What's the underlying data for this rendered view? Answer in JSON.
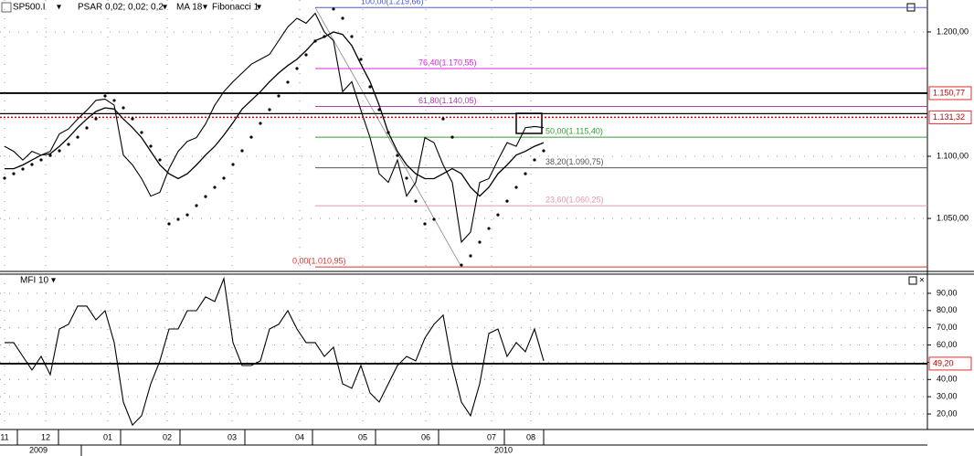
{
  "chart_data": [
    {
      "type": "line",
      "x": [
        0,
        1,
        2,
        3,
        4,
        5,
        6,
        7,
        8,
        9,
        10,
        11,
        12,
        13,
        14,
        15,
        16,
        17,
        18,
        19,
        20,
        21,
        22,
        23,
        24,
        25,
        26,
        27,
        28,
        29,
        30,
        31,
        32,
        33,
        34,
        35,
        36,
        37,
        38,
        39,
        40,
        41,
        42,
        43,
        44,
        45,
        46,
        47,
        48,
        49,
        50,
        51,
        52,
        53,
        54,
        55,
        56,
        57,
        58,
        59
      ],
      "xlim": [
        -0.5,
        101
      ],
      "ylim": [
        1007.4,
        1225.7
      ],
      "yticks": [
        {
          "value": 1200,
          "label": "1.200,00"
        },
        {
          "value": 1100,
          "label": "1.100,00"
        },
        {
          "value": 1050,
          "label": "1.050,00"
        }
      ],
      "grid": true,
      "series": [
        {
          "name": "SP500.I",
          "color": "#000000",
          "style": "line",
          "values": [
            1108,
            1104,
            1097,
            1104,
            1101,
            1104,
            1118,
            1122,
            1130,
            1137,
            1145,
            1146,
            1141,
            1101,
            1093,
            1082,
            1068,
            1071,
            1090,
            1104,
            1112,
            1115,
            1126,
            1141,
            1152,
            1160,
            1167,
            1174,
            1178,
            1182,
            1193,
            1204,
            1211,
            1207,
            1215,
            1200,
            1193,
            1152,
            1160,
            1137,
            1115,
            1086,
            1079,
            1097,
            1068,
            1079,
            1115,
            1111,
            1093,
            1079,
            1031,
            1039,
            1079,
            1082,
            1097,
            1111,
            1108,
            1123,
            1124,
            1123
          ]
        },
        {
          "name": "MA 18",
          "color": "#000000",
          "style": "line",
          "values": [
            1090,
            1090,
            1093,
            1097,
            1101,
            1102,
            1108,
            1115,
            1123,
            1130,
            1136,
            1139,
            1138,
            1130,
            1123,
            1115,
            1104,
            1093,
            1086,
            1082,
            1086,
            1093,
            1101,
            1108,
            1117,
            1127,
            1138,
            1145,
            1152,
            1160,
            1167,
            1173,
            1178,
            1185,
            1193,
            1196,
            1200,
            1198,
            1189,
            1174,
            1160,
            1141,
            1119,
            1104,
            1093,
            1086,
            1082,
            1082,
            1086,
            1090,
            1086,
            1075,
            1068,
            1075,
            1086,
            1093,
            1101,
            1104,
            1108,
            1111
          ]
        },
        {
          "name": "PSAR 0,02; 0,02; 0,2",
          "color": "#000000",
          "style": "dots",
          "values": [
            1082.4,
            1086.0,
            1089.7,
            1093.4,
            1097.1,
            1100.7,
            1104.4,
            1109.6,
            1115.4,
            1122.8,
            1130.1,
            1148.5,
            1144.9,
            1139.0,
            1130.1,
            1119.1,
            1108.1,
            1097.1,
            1045.6,
            1049.3,
            1052.9,
            1060.3,
            1067.6,
            1075.0,
            1082.4,
            1093.4,
            1104.4,
            1115.4,
            1126.5,
            1137.5,
            1148.5,
            1159.6,
            1170.6,
            1181.6,
            1192.6,
            1196.3,
            1218.4,
            1211.0,
            1196.3,
            1177.9,
            1155.9,
            1137.5,
            1119.1,
            1100.7,
            1082.4,
            1063.9,
            1045.6,
            1049.3,
            1130.1,
            1115.4,
            1012.5,
            1019.9,
            1030.9,
            1041.9,
            1052.9,
            1063.9,
            1075.0,
            1086.0,
            1097.1,
            1104.4
          ]
        }
      ],
      "fibonacci": {
        "name": "Fibonacci 1",
        "levels": [
          {
            "value": 1219.66,
            "label": "100,00(1.219,66)",
            "color": "#4a5ad8"
          },
          {
            "value": 1170.55,
            "label": "76,40(1.170,55)",
            "color": "#e020e0"
          },
          {
            "value": 1140.05,
            "label": "61,80(1.140,05)",
            "color": "#b040b0"
          },
          {
            "value": 1115.4,
            "label": "50,00(1.115,40)",
            "color": "#3a9a3a"
          },
          {
            "value": 1090.75,
            "label": "38,20(1.090,75)",
            "color": "#555555"
          },
          {
            "value": 1060.25,
            "label": "23,60(1.060,25)",
            "color": "#e09aa6"
          },
          {
            "value": 1010.95,
            "label": "0,00(1.010,95)",
            "color": "#e03030"
          }
        ]
      },
      "levels": [
        {
          "value": 1150.77,
          "label": "1.150,77",
          "color": "#000000"
        },
        {
          "value": 1131.32,
          "label": "1.131,32",
          "color": "#e00000"
        }
      ]
    },
    {
      "type": "line",
      "x": [
        0,
        1,
        2,
        3,
        4,
        5,
        6,
        7,
        8,
        9,
        10,
        11,
        12,
        13,
        14,
        15,
        16,
        17,
        18,
        19,
        20,
        21,
        22,
        23,
        24,
        25,
        26,
        27,
        28,
        29,
        30,
        31,
        32,
        33,
        34,
        35,
        36,
        37,
        38,
        39,
        40,
        41,
        42,
        43,
        44,
        45,
        46,
        47,
        48,
        49,
        50,
        51,
        52,
        53,
        54,
        55,
        56,
        57,
        58,
        59
      ],
      "xlim": [
        -0.5,
        101
      ],
      "ylim": [
        11,
        101.1
      ],
      "yticks": [
        {
          "value": 90,
          "label": "90,00"
        },
        {
          "value": 80,
          "label": "80,00"
        },
        {
          "value": 70,
          "label": "70,00"
        },
        {
          "value": 60,
          "label": "60,00"
        },
        {
          "value": 50,
          "label": "50,00"
        },
        {
          "value": 40,
          "label": "40,00"
        },
        {
          "value": 30,
          "label": "30,00"
        },
        {
          "value": 20,
          "label": "20,00"
        }
      ],
      "grid": true,
      "series": [
        {
          "name": "MFI 10",
          "color": "#000000",
          "style": "line",
          "values": [
            61.4,
            61.4,
            53.4,
            45.5,
            53.4,
            42.8,
            69.3,
            72.0,
            82.6,
            82.6,
            74.6,
            79.9,
            61.4,
            26.9,
            13.6,
            19.0,
            37.5,
            50.8,
            69.3,
            69.3,
            79.9,
            79.9,
            87.9,
            85.2,
            98.5,
            61.4,
            48.1,
            48.1,
            50.8,
            69.3,
            72.0,
            79.9,
            69.3,
            61.4,
            61.4,
            53.4,
            58.7,
            37.5,
            34.9,
            48.1,
            32.2,
            26.9,
            37.5,
            48.1,
            53.4,
            50.8,
            64.0,
            72.0,
            77.3,
            48.1,
            26.9,
            19.0,
            37.5,
            66.7,
            69.3,
            53.4,
            61.4,
            56.1,
            69.3,
            50.8
          ]
        }
      ],
      "levels": [
        {
          "value": 49.2,
          "label": "49,20",
          "color": "#000000"
        }
      ],
      "xticks": [
        {
          "value": 0,
          "label": "11"
        },
        {
          "value": 4.5,
          "label": "12"
        },
        {
          "value": 11.3,
          "label": "01"
        },
        {
          "value": 17.8,
          "label": "02"
        },
        {
          "value": 24.9,
          "label": "03"
        },
        {
          "value": 32.3,
          "label": "04"
        },
        {
          "value": 39.2,
          "label": "05"
        },
        {
          "value": 46.1,
          "label": "06"
        },
        {
          "value": 53.3,
          "label": "07"
        },
        {
          "value": 57.6,
          "label": "08"
        }
      ],
      "year_labels": [
        {
          "value": 3.7,
          "label": "2009"
        },
        {
          "value": 54.6,
          "label": "2010"
        }
      ]
    }
  ]
}
